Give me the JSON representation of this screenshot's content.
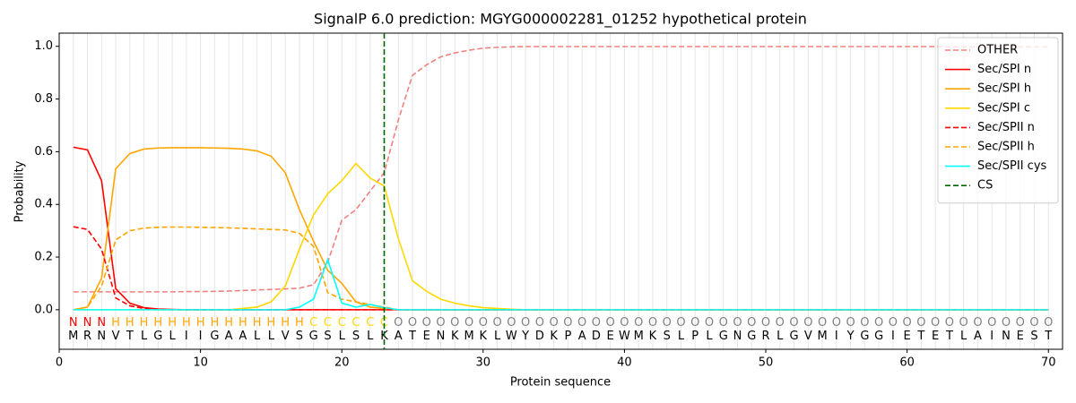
{
  "chart_data": {
    "type": "line",
    "title": "SignalP 6.0 prediction: MGYG000002281_01252 hypothetical protein",
    "xlabel": "Protein sequence",
    "ylabel": "Probability",
    "xlim": [
      0,
      71
    ],
    "ylim": [
      -0.15,
      1.05
    ],
    "xticks": [
      0,
      10,
      20,
      30,
      40,
      50,
      60,
      70
    ],
    "yticks": [
      {
        "value": 0,
        "label": "0.0"
      },
      {
        "value": 0.2,
        "label": "0.2"
      },
      {
        "value": 0.4,
        "label": "0.4"
      },
      {
        "value": 0.6,
        "label": "0.6"
      },
      {
        "value": 0.8,
        "label": "0.8"
      },
      {
        "value": 1,
        "label": "1.0"
      }
    ],
    "vertical_grid": true,
    "legend": "upper right",
    "x": [
      1,
      2,
      3,
      4,
      5,
      6,
      7,
      8,
      9,
      10,
      11,
      12,
      13,
      14,
      15,
      16,
      17,
      18,
      19,
      20,
      21,
      22,
      23,
      24,
      25,
      26,
      27,
      28,
      29,
      30,
      31,
      32,
      33,
      34,
      35,
      36,
      37,
      38,
      39,
      40,
      41,
      42,
      43,
      44,
      45,
      46,
      47,
      48,
      49,
      50,
      51,
      52,
      53,
      54,
      55,
      56,
      57,
      58,
      59,
      60,
      61,
      62,
      63,
      64,
      65,
      66,
      67,
      68,
      69,
      70
    ],
    "sequence": [
      "M",
      "R",
      "N",
      "V",
      "T",
      "L",
      "G",
      "L",
      "I",
      "I",
      "G",
      "A",
      "A",
      "L",
      "L",
      "V",
      "S",
      "G",
      "S",
      "L",
      "S",
      "L",
      "K",
      "A",
      "T",
      "E",
      "N",
      "K",
      "M",
      "K",
      "L",
      "W",
      "Y",
      "D",
      "K",
      "P",
      "A",
      "D",
      "E",
      "W",
      "M",
      "K",
      "S",
      "L",
      "P",
      "L",
      "G",
      "N",
      "G",
      "R",
      "L",
      "G",
      "V",
      "M",
      "I",
      "Y",
      "G",
      "G",
      "I",
      "E",
      "T",
      "E",
      "T",
      "L",
      "A",
      "I",
      "N",
      "E",
      "S",
      "T"
    ],
    "labels": [
      "N",
      "N",
      "N",
      "H",
      "H",
      "H",
      "H",
      "H",
      "H",
      "H",
      "H",
      "H",
      "H",
      "H",
      "H",
      "H",
      "H",
      "C",
      "C",
      "C",
      "C",
      "C",
      "C",
      "O",
      "O",
      "O",
      "O",
      "O",
      "O",
      "O",
      "O",
      "O",
      "O",
      "O",
      "O",
      "O",
      "O",
      "O",
      "O",
      "O",
      "O",
      "O",
      "O",
      "O",
      "O",
      "O",
      "O",
      "O",
      "O",
      "O",
      "O",
      "O",
      "O",
      "O",
      "O",
      "O",
      "O",
      "O",
      "O",
      "O",
      "O",
      "O",
      "O",
      "O",
      "O",
      "O",
      "O",
      "O",
      "O",
      "O"
    ],
    "label_colors": {
      "N": "red",
      "H": "orange",
      "C": "gold",
      "O": "gray"
    },
    "series": [
      {
        "name": "OTHER",
        "color": "lightcoral",
        "dash": true,
        "values": [
          0.068,
          0.068,
          0.068,
          0.068,
          0.068,
          0.068,
          0.068,
          0.068,
          0.069,
          0.069,
          0.07,
          0.071,
          0.073,
          0.075,
          0.077,
          0.079,
          0.082,
          0.095,
          0.18,
          0.34,
          0.38,
          0.45,
          0.52,
          0.72,
          0.89,
          0.93,
          0.96,
          0.975,
          0.985,
          0.993,
          0.996,
          0.998,
          0.999,
          0.999,
          0.999,
          0.999,
          0.999,
          0.999,
          0.999,
          0.999,
          0.999,
          0.999,
          0.999,
          0.999,
          0.999,
          0.999,
          0.999,
          0.999,
          0.999,
          0.999,
          0.999,
          0.999,
          0.999,
          0.999,
          0.999,
          0.999,
          0.999,
          0.999,
          0.999,
          0.999,
          0.999,
          0.999,
          0.998,
          0.998,
          0.998,
          0.998,
          0.998,
          0.998,
          0.998,
          0.998
        ]
      },
      {
        "name": "Sec/SPI n",
        "color": "red",
        "dash": false,
        "values": [
          0.617,
          0.607,
          0.49,
          0.08,
          0.025,
          0.008,
          0.003,
          0.001,
          0,
          0,
          0,
          0,
          0,
          0,
          0,
          0,
          0,
          0,
          0,
          0,
          0,
          0,
          0,
          0,
          0,
          0,
          0,
          0,
          0,
          0,
          0,
          0,
          0,
          0,
          0,
          0,
          0,
          0,
          0,
          0,
          0,
          0,
          0,
          0,
          0,
          0,
          0,
          0,
          0,
          0,
          0,
          0,
          0,
          0,
          0,
          0,
          0,
          0,
          0,
          0,
          0,
          0,
          0,
          0,
          0,
          0,
          0,
          0,
          0,
          0
        ]
      },
      {
        "name": "Sec/SPI h",
        "color": "orange",
        "dash": false,
        "values": [
          0,
          0.01,
          0.12,
          0.535,
          0.593,
          0.61,
          0.614,
          0.615,
          0.615,
          0.615,
          0.614,
          0.613,
          0.61,
          0.603,
          0.583,
          0.52,
          0.38,
          0.26,
          0.15,
          0.1,
          0.03,
          0.01,
          0.005,
          0,
          0,
          0,
          0,
          0,
          0,
          0,
          0,
          0,
          0,
          0,
          0,
          0,
          0,
          0,
          0,
          0,
          0,
          0,
          0,
          0,
          0,
          0,
          0,
          0,
          0,
          0,
          0,
          0,
          0,
          0,
          0,
          0,
          0,
          0,
          0,
          0,
          0,
          0,
          0,
          0,
          0,
          0,
          0,
          0,
          0,
          0
        ]
      },
      {
        "name": "Sec/SPI c",
        "color": "gold",
        "dash": false,
        "values": [
          0,
          0,
          0,
          0,
          0,
          0,
          0,
          0,
          0,
          0,
          0,
          0,
          0.005,
          0.01,
          0.03,
          0.09,
          0.23,
          0.36,
          0.44,
          0.49,
          0.555,
          0.5,
          0.47,
          0.27,
          0.11,
          0.07,
          0.04,
          0.025,
          0.015,
          0.008,
          0.005,
          0.002,
          0,
          0,
          0,
          0,
          0,
          0,
          0,
          0,
          0,
          0,
          0,
          0,
          0,
          0,
          0,
          0,
          0,
          0,
          0,
          0,
          0,
          0,
          0,
          0,
          0,
          0,
          0,
          0,
          0,
          0,
          0,
          0,
          0,
          0,
          0,
          0,
          0,
          0
        ]
      },
      {
        "name": "Sec/SPII n",
        "color": "red",
        "dash": true,
        "values": [
          0.315,
          0.305,
          0.23,
          0.045,
          0.015,
          0.005,
          0.002,
          0,
          0,
          0,
          0,
          0,
          0,
          0,
          0,
          0,
          0,
          0,
          0,
          0,
          0,
          0,
          0,
          0,
          0,
          0,
          0,
          0,
          0,
          0,
          0,
          0,
          0,
          0,
          0,
          0,
          0,
          0,
          0,
          0,
          0,
          0,
          0,
          0,
          0,
          0,
          0,
          0,
          0,
          0,
          0,
          0,
          0,
          0,
          0,
          0,
          0,
          0,
          0,
          0,
          0,
          0,
          0,
          0,
          0,
          0,
          0,
          0,
          0,
          0
        ]
      },
      {
        "name": "Sec/SPII h",
        "color": "orange",
        "dash": true,
        "values": [
          0,
          0.01,
          0.09,
          0.265,
          0.3,
          0.31,
          0.313,
          0.314,
          0.314,
          0.313,
          0.312,
          0.311,
          0.309,
          0.307,
          0.305,
          0.303,
          0.29,
          0.24,
          0.065,
          0.04,
          0.03,
          0.02,
          0.01,
          0,
          0,
          0,
          0,
          0,
          0,
          0,
          0,
          0,
          0,
          0,
          0,
          0,
          0,
          0,
          0,
          0,
          0,
          0,
          0,
          0,
          0,
          0,
          0,
          0,
          0,
          0,
          0,
          0,
          0,
          0,
          0,
          0,
          0,
          0,
          0,
          0,
          0,
          0,
          0,
          0,
          0,
          0,
          0,
          0,
          0,
          0
        ]
      },
      {
        "name": "Sec/SPII cys",
        "color": "cyan",
        "dash": false,
        "values": [
          0,
          0,
          0,
          0,
          0,
          0,
          0,
          0,
          0,
          0,
          0,
          0,
          0,
          0,
          0,
          0,
          0.01,
          0.04,
          0.19,
          0.025,
          0.01,
          0.02,
          0.008,
          0,
          0,
          0,
          0,
          0,
          0,
          0,
          0,
          0,
          0,
          0,
          0,
          0,
          0,
          0,
          0,
          0,
          0,
          0,
          0,
          0,
          0,
          0,
          0,
          0,
          0,
          0,
          0,
          0,
          0,
          0,
          0,
          0,
          0,
          0,
          0,
          0,
          0,
          0,
          0,
          0,
          0,
          0,
          0,
          0,
          0,
          0
        ]
      }
    ],
    "cleavage_site": {
      "name": "CS",
      "color": "darkgreen",
      "x": 23
    }
  }
}
